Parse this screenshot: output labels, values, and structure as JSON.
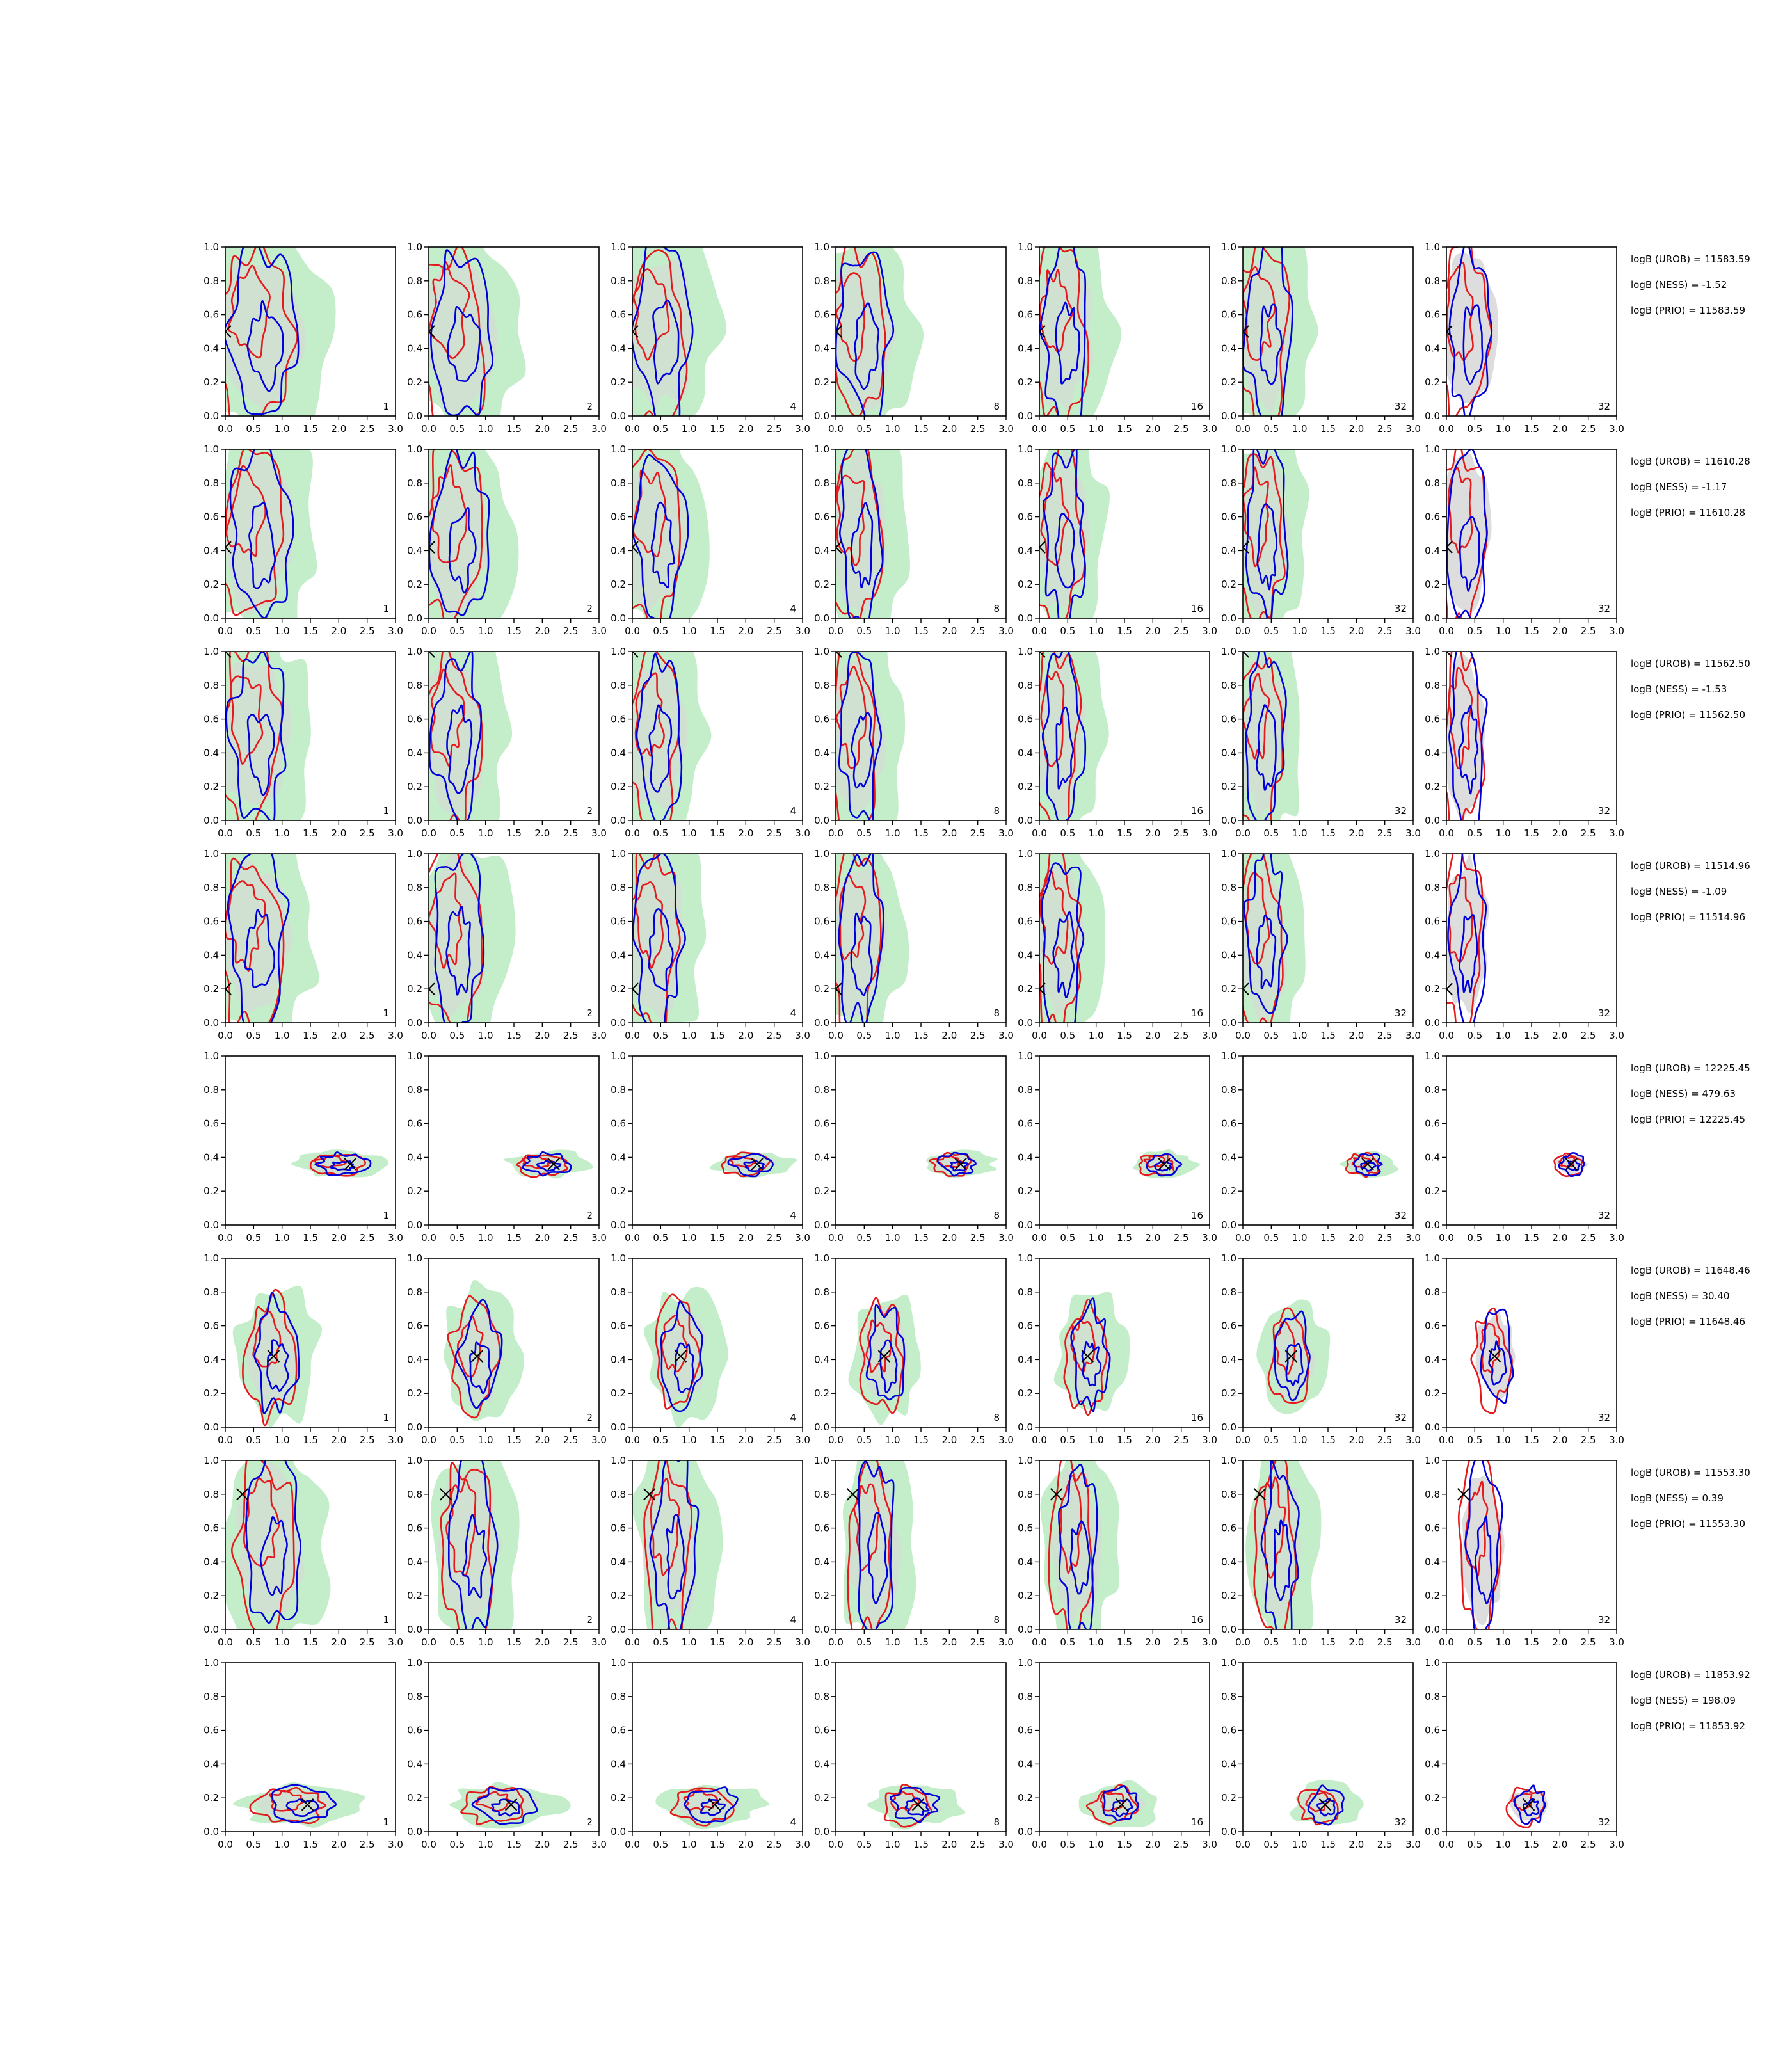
{
  "chart_data": {
    "type": "contour-grid",
    "xlim": [
      0,
      3
    ],
    "ylim": [
      0,
      1
    ],
    "x_ticks": [
      "0.0",
      "0.5",
      "1.0",
      "1.5",
      "2.0",
      "2.5",
      "3.0"
    ],
    "y_ticks": [
      "0.0",
      "0.2",
      "0.4",
      "0.6",
      "0.8",
      "1.0"
    ],
    "columns": [
      "1",
      "2",
      "4",
      "8",
      "16",
      "32",
      "32"
    ],
    "colors": {
      "red": "#e41a1c",
      "blue": "#0000dd",
      "green": "#b9ebbf",
      "grey": "#d9d9d9",
      "cross": "#000000"
    },
    "rows": [
      {
        "marker": [
          0,
          0.5
        ],
        "logb_lines": [
          "logB (UROB) = 11583.59",
          "logB (NESS) = -1.52",
          "logB (PRIO) = 11583.59"
        ],
        "mode": "spread",
        "spread": [
          0.9,
          0.45
        ]
      },
      {
        "marker": [
          0,
          0.42
        ],
        "logb_lines": [
          "logB (UROB) = 11610.28",
          "logB (NESS) = -1.17",
          "logB (PRIO) = 11610.28"
        ],
        "mode": "spread",
        "spread": [
          0.8,
          0.5
        ]
      },
      {
        "marker": [
          0,
          1.0
        ],
        "logb_lines": [
          "logB (UROB) = 11562.50",
          "logB (NESS) = -1.53",
          "logB (PRIO) = 11562.50"
        ],
        "mode": "spread",
        "spread": [
          0.75,
          0.5
        ]
      },
      {
        "marker": [
          0,
          0.2
        ],
        "logb_lines": [
          "logB (UROB) = 11514.96",
          "logB (NESS) = -1.09",
          "logB (PRIO) = 11514.96"
        ],
        "mode": "spread",
        "spread": [
          0.75,
          0.5
        ]
      },
      {
        "marker": [
          2.2,
          0.36
        ],
        "logb_lines": [
          "logB (UROB) = 12225.45",
          "logB (NESS) = 479.63",
          "logB (PRIO) = 12225.45"
        ],
        "mode": "narrow",
        "spread": [
          0.4,
          0.03
        ]
      },
      {
        "marker": [
          0.85,
          0.42
        ],
        "logb_lines": [
          "logB (UROB) = 11648.46",
          "logB (NESS) = 30.40",
          "logB (PRIO) = 11648.46"
        ],
        "mode": "centered",
        "spread": [
          0.4,
          0.2
        ]
      },
      {
        "marker": [
          0.3,
          0.8
        ],
        "logb_lines": [
          "logB (UROB) = 11553.30",
          "logB (NESS) = 0.39",
          "logB (PRIO) = 11553.30"
        ],
        "mode": "spread",
        "spread": [
          0.7,
          0.45
        ]
      },
      {
        "marker": [
          1.45,
          0.16
        ],
        "logb_lines": [
          "logB (UROB) = 11853.92",
          "logB (NESS) = 198.09",
          "logB (PRIO) = 11853.92"
        ],
        "mode": "narrow",
        "spread": [
          0.5,
          0.05
        ]
      }
    ]
  }
}
